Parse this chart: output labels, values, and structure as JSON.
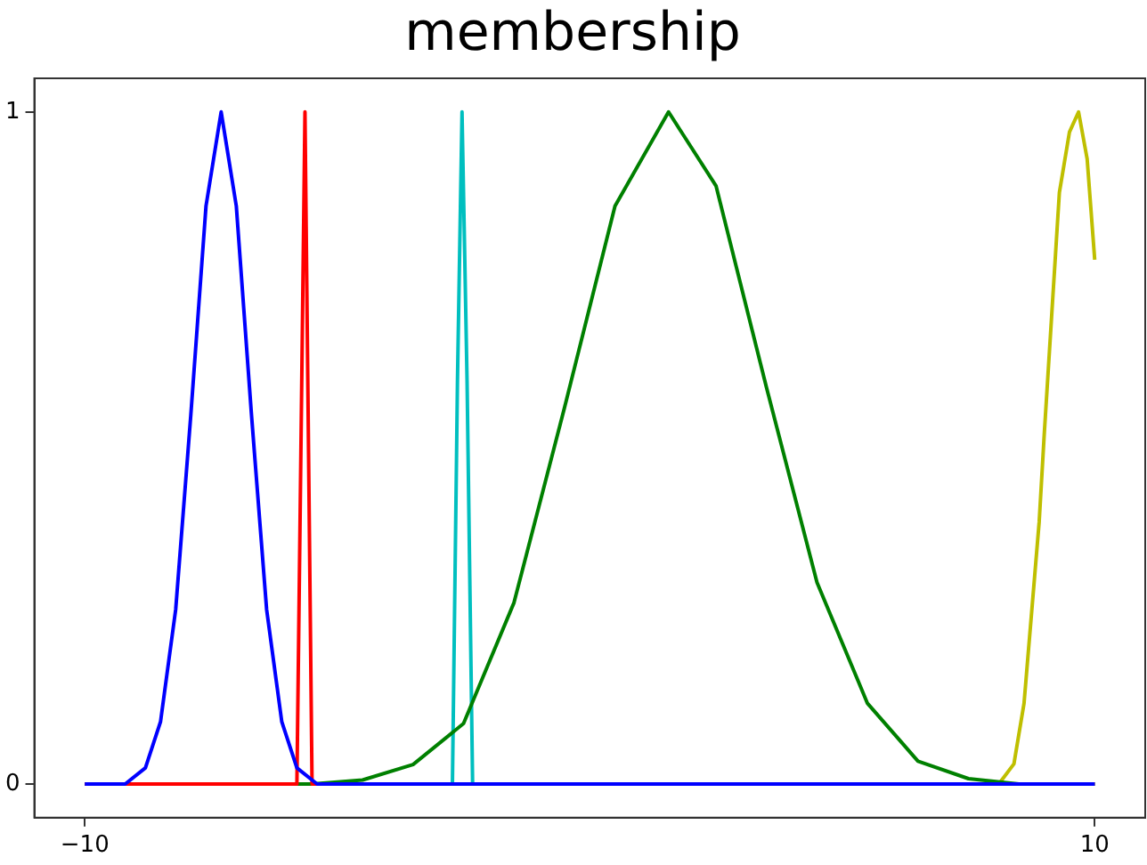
{
  "chart_data": {
    "type": "line",
    "title": "membership",
    "xlim": [
      -11,
      11
    ],
    "xticks": [
      {
        "value": -10,
        "label": "−10"
      },
      10
    ],
    "ylim": [
      -0.05,
      1.05
    ],
    "yticks": [
      0,
      1
    ],
    "marker": "none",
    "line_style": "solid",
    "legend": false,
    "series": [
      {
        "color": "#0000ff",
        "x": [
          -10,
          -9.2,
          -8.8,
          -8.5,
          -8.2,
          -7.9,
          -7.6,
          -7.3,
          -7.0,
          -6.7,
          -6.4,
          -6.1,
          -5.8,
          -5.4,
          10
        ],
        "values": [
          0,
          0,
          0.024,
          0.093,
          0.26,
          0.55,
          0.86,
          1,
          0.86,
          0.55,
          0.26,
          0.093,
          0.024,
          0,
          0
        ]
      },
      {
        "color": "#ff0000",
        "x": [
          -10,
          -5.8,
          -5.64,
          -5.5,
          10
        ],
        "values": [
          0,
          0,
          1,
          0,
          0
        ]
      },
      {
        "color": "#008000",
        "x": [
          -10,
          -5.5,
          -4.5,
          -3.5,
          -2.5,
          -1.5,
          -0.5,
          0.5,
          1.56,
          2.5,
          3.5,
          4.5,
          5.5,
          6.5,
          7.5,
          8.5,
          10
        ],
        "values": [
          0,
          0,
          0.006,
          0.029,
          0.09,
          0.27,
          0.56,
          0.86,
          1,
          0.89,
          0.59,
          0.3,
          0.12,
          0.034,
          0.008,
          0,
          0
        ]
      },
      {
        "color": "#bfbf00",
        "x": [
          8.1,
          8.4,
          8.6,
          8.9,
          9.0,
          9.3,
          9.5,
          9.68,
          9.85,
          10
        ],
        "values": [
          0,
          0.03,
          0.12,
          0.39,
          0.52,
          0.88,
          0.97,
          1,
          0.93,
          0.78
        ]
      },
      {
        "color": "#00bfbf",
        "x": [
          -10,
          -2.72,
          -2.62,
          -2.53,
          -2.43,
          -2.32,
          10
        ],
        "values": [
          0,
          0,
          0.6,
          1,
          0.6,
          0,
          0
        ]
      }
    ]
  }
}
